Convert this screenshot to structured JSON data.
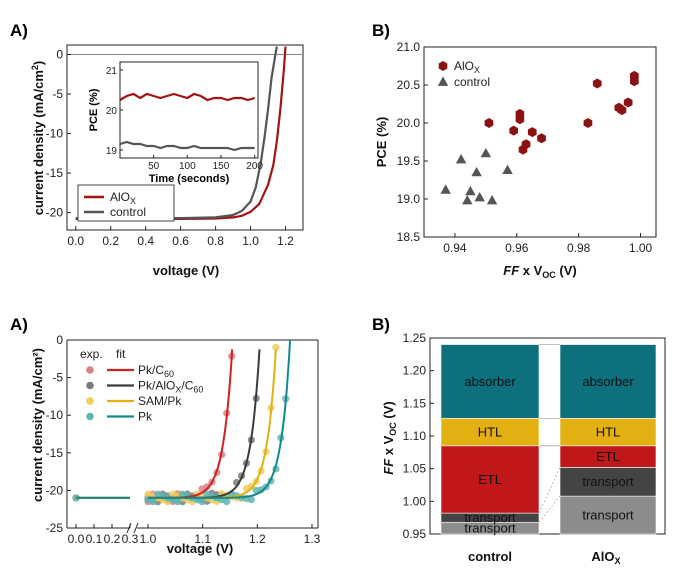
{
  "panels": {
    "top_left": {
      "label": "A)"
    },
    "top_right": {
      "label": "B)"
    },
    "bottom_left": {
      "label": "A)"
    },
    "bottom_right": {
      "label": "B)"
    }
  },
  "colors": {
    "aloxRed": "#a01414",
    "controlGray": "#555555",
    "tealAbsorber": "#0e6f7d",
    "yellowHTL": "#e3b012",
    "redETL": "#c01818",
    "darkTransport": "#444444",
    "grayTransport": "#8c8c8c"
  },
  "chart_data": [
    {
      "id": "jv",
      "type": "line",
      "xlabel": "voltage (V)",
      "ylabel_main": "current density (mA/cm",
      "ylabel_sup": "2",
      "ylabel_end": ")",
      "xlim": [
        -0.05,
        1.3
      ],
      "ylim": [
        -22.2,
        1.2
      ],
      "xticks": [
        "0.0",
        "0.2",
        "0.4",
        "0.6",
        "0.8",
        "1.0",
        "1.2"
      ],
      "xtick_values": [
        0,
        0.2,
        0.4,
        0.6,
        0.8,
        1.0,
        1.2
      ],
      "yticks": [
        "0",
        "-5",
        "-10",
        "-15",
        "-20"
      ],
      "ytick_values": [
        0,
        -5,
        -10,
        -15,
        -20
      ],
      "legend_position": "bottom-left",
      "series": [
        {
          "name_main": "AlO",
          "name_sub": "X",
          "color": "#a01414",
          "x": [
            0.0,
            0.2,
            0.4,
            0.6,
            0.8,
            0.9,
            0.95,
            1.0,
            1.05,
            1.1,
            1.13,
            1.15,
            1.17,
            1.19,
            1.2
          ],
          "y": [
            -20.8,
            -20.8,
            -20.8,
            -20.8,
            -20.75,
            -20.6,
            -20.4,
            -19.9,
            -18.9,
            -16.5,
            -14.0,
            -11.0,
            -7.0,
            -2.0,
            1.0
          ]
        },
        {
          "name_main": "control",
          "name_sub": "",
          "color": "#555555",
          "x": [
            0.0,
            0.2,
            0.4,
            0.6,
            0.8,
            0.9,
            0.95,
            1.0,
            1.03,
            1.06,
            1.08,
            1.1,
            1.12,
            1.14,
            1.15
          ],
          "y": [
            -20.7,
            -20.7,
            -20.7,
            -20.7,
            -20.6,
            -20.3,
            -19.8,
            -18.6,
            -16.8,
            -13.5,
            -10.5,
            -7.0,
            -3.0,
            -0.3,
            1.0
          ]
        }
      ],
      "inset": {
        "xlabel": "Time (seconds)",
        "ylabel": "PCE (%)",
        "xlim": [
          0,
          205
        ],
        "ylim": [
          18.8,
          21.2
        ],
        "xticks": [
          "50",
          "100",
          "150",
          "200"
        ],
        "xtick_values": [
          50,
          100,
          150,
          200
        ],
        "yticks": [
          "19",
          "20",
          "21"
        ],
        "ytick_values": [
          19,
          20,
          21
        ],
        "series": [
          {
            "name": "AlOx",
            "color": "#a01414",
            "x": [
              0,
              10,
              20,
              30,
              40,
              50,
              60,
              70,
              80,
              90,
              100,
              110,
              120,
              130,
              140,
              150,
              160,
              170,
              180,
              190,
              200
            ],
            "y": [
              20.25,
              20.35,
              20.4,
              20.3,
              20.4,
              20.35,
              20.3,
              20.35,
              20.4,
              20.35,
              20.3,
              20.4,
              20.35,
              20.25,
              20.3,
              20.3,
              20.25,
              20.3,
              20.3,
              20.25,
              20.3
            ]
          },
          {
            "name": "control",
            "color": "#555555",
            "x": [
              0,
              10,
              20,
              30,
              40,
              50,
              60,
              70,
              80,
              90,
              100,
              110,
              120,
              130,
              140,
              150,
              160,
              170,
              180,
              190,
              200
            ],
            "y": [
              19.15,
              19.2,
              19.15,
              19.15,
              19.1,
              19.1,
              19.05,
              19.1,
              19.1,
              19.05,
              19.05,
              19.1,
              19.05,
              19.05,
              19.05,
              19.05,
              19.05,
              19.0,
              19.05,
              19.05,
              19.05
            ]
          }
        ]
      }
    },
    {
      "id": "pce_scatter",
      "type": "scatter",
      "xlabel_italic": "FF",
      "xlabel_mid": " x V",
      "xlabel_sub": "OC",
      "xlabel_end": " (V)",
      "ylabel": "PCE (%)",
      "xlim": [
        0.93,
        1.005
      ],
      "ylim": [
        18.5,
        21.0
      ],
      "xticks": [
        "0.94",
        "0.96",
        "0.98",
        "1.00"
      ],
      "xtick_values": [
        0.94,
        0.96,
        0.98,
        1.0
      ],
      "yticks": [
        "21.0",
        "20.5",
        "20.0",
        "19.5",
        "19.0",
        "18.5"
      ],
      "ytick_values": [
        21.0,
        20.5,
        20.0,
        19.5,
        19.0,
        18.5
      ],
      "legend_position": "top-left",
      "series": [
        {
          "name_main": "AlO",
          "name_sub": "X",
          "marker": "hexagon",
          "color": "#8b1212",
          "x": [
            0.951,
            0.959,
            0.961,
            0.961,
            0.962,
            0.963,
            0.965,
            0.968,
            0.983,
            0.986,
            0.993,
            0.994,
            0.996,
            0.998,
            0.998
          ],
          "y": [
            20.0,
            19.9,
            20.12,
            20.05,
            19.65,
            19.72,
            19.88,
            19.8,
            20.0,
            20.52,
            20.2,
            20.17,
            20.27,
            20.62,
            20.55
          ]
        },
        {
          "name_main": "control",
          "name_sub": "",
          "marker": "triangle",
          "color": "#555555",
          "x": [
            0.937,
            0.942,
            0.944,
            0.945,
            0.947,
            0.948,
            0.95,
            0.952,
            0.957
          ],
          "y": [
            19.12,
            19.52,
            18.98,
            19.1,
            19.35,
            19.02,
            19.6,
            18.98,
            19.38
          ]
        }
      ]
    },
    {
      "id": "jv_fits",
      "type": "line",
      "xlabel": "voltage (V)",
      "ylabel": "current density (mA/cm²)",
      "ylim": [
        -25,
        0
      ],
      "xticks_left": [
        "0.0",
        "0.1",
        "0.2",
        "0.3"
      ],
      "xtick_left_values": [
        0.0,
        0.1,
        0.2,
        0.3
      ],
      "xticks_right": [
        "1.0",
        "1.1",
        "1.2",
        "1.3"
      ],
      "xtick_right_values": [
        1.0,
        1.1,
        1.2,
        1.3
      ],
      "yticks": [
        "0",
        "-5",
        "-10",
        "-15",
        "-20",
        "-25"
      ],
      "ytick_values": [
        0,
        -5,
        -10,
        -15,
        -20,
        -25
      ],
      "legend_header_exp": "exp.",
      "legend_header_fit": "fit",
      "legend_position": "top-left",
      "series": [
        {
          "label": "Pk/C",
          "label_sub": "60",
          "label_tail": "",
          "color": "#cc2222",
          "dot": "#d98080",
          "voc": 1.155,
          "isc": 21.0,
          "v0": 0.0165
        },
        {
          "label": "Pk/AlO",
          "label_sub": "X",
          "label_tail": "/C",
          "label_sub2": "60",
          "color": "#3b3b3b",
          "dot": "#7a7a7a",
          "voc": 1.205,
          "isc": 21.0,
          "v0": 0.0165
        },
        {
          "label": "SAM/Pk",
          "label_sub": "",
          "label_tail": "",
          "color": "#e3b012",
          "dot": "#f0cc5a",
          "voc": 1.235,
          "isc": 21.0,
          "v0": 0.0165
        },
        {
          "label": "Pk",
          "label_sub": "",
          "label_tail": "",
          "color": "#138a8a",
          "dot": "#5fb5b5",
          "voc": 1.26,
          "isc": 21.0,
          "v0": 0.0165
        }
      ]
    },
    {
      "id": "loss_stack",
      "type": "bar",
      "ylabel_italic": "FF",
      "ylabel_mid": " x V",
      "ylabel_sub": "OC",
      "ylabel_end": " (V)",
      "ylim": [
        0.95,
        1.25
      ],
      "yticks": [
        "1.25",
        "1.20",
        "1.15",
        "1.10",
        "1.05",
        "1.00",
        "0.95"
      ],
      "ytick_values": [
        1.25,
        1.2,
        1.15,
        1.1,
        1.05,
        1.0,
        0.95
      ],
      "categories": [
        "control",
        "AlO"
      ],
      "category_subs": [
        "",
        "X"
      ],
      "series": [
        {
          "name": "transport",
          "values": [
            [
              0.95,
              0.968
            ],
            [
              0.95,
              1.008
            ]
          ],
          "color": "#8c8c8c"
        },
        {
          "name": "transport",
          "values": [
            [
              0.968,
              0.982
            ],
            [
              1.008,
              1.052
            ]
          ],
          "color": "#444444"
        },
        {
          "name": "ETL",
          "values": [
            [
              0.982,
              1.085
            ],
            [
              1.052,
              1.085
            ]
          ],
          "color": "#c01818"
        },
        {
          "name": "HTL",
          "values": [
            [
              1.085,
              1.127
            ],
            [
              1.085,
              1.127
            ]
          ],
          "color": "#e3b012"
        },
        {
          "name": "absorber",
          "values": [
            [
              1.127,
              1.24
            ],
            [
              1.127,
              1.24
            ]
          ],
          "color": "#0e6f7d"
        }
      ]
    }
  ]
}
